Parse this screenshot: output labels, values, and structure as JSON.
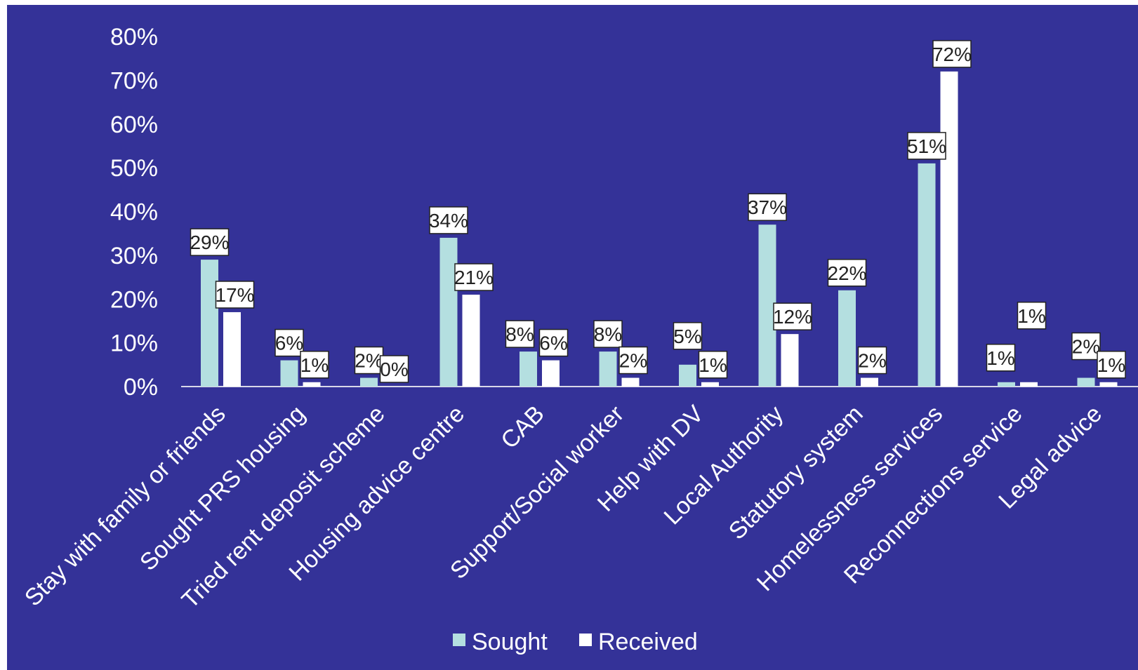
{
  "chart_data": {
    "type": "bar",
    "categories": [
      "Stay with family or friends",
      "Sought PRS housing",
      "Tried rent deposit scheme",
      "Housing advice centre",
      "CAB",
      "Support/Social worker",
      "Help with DV",
      "Local Authority",
      "Statutory system",
      "Homelessness services",
      "Reconnections service",
      "Legal advice"
    ],
    "series": [
      {
        "name": "Sought",
        "color": "#b4dfe0",
        "values": [
          29,
          6,
          2,
          34,
          8,
          8,
          5,
          37,
          22,
          51,
          1,
          2
        ],
        "labels": [
          "29%",
          "6%",
          "2%",
          "34%",
          "8%",
          "8%",
          "5%",
          "37%",
          "22%",
          "51%",
          "1%",
          "2%"
        ]
      },
      {
        "name": "Received",
        "color": "#ffffff",
        "values": [
          17,
          1,
          0,
          21,
          6,
          2,
          1,
          12,
          2,
          72,
          1,
          1
        ],
        "labels": [
          "17%",
          "1%",
          "0%",
          "21%",
          "6%",
          "2%",
          "1%",
          "12%",
          "2%",
          "72%",
          "1%",
          "1%"
        ]
      }
    ],
    "y_ticks": [
      "0%",
      "10%",
      "20%",
      "30%",
      "40%",
      "50%",
      "60%",
      "70%",
      "80%"
    ],
    "ylim": [
      0,
      80
    ],
    "grid": false,
    "legend_position": "bottom",
    "background_color": "#343298",
    "text_color": "#ffffff"
  }
}
